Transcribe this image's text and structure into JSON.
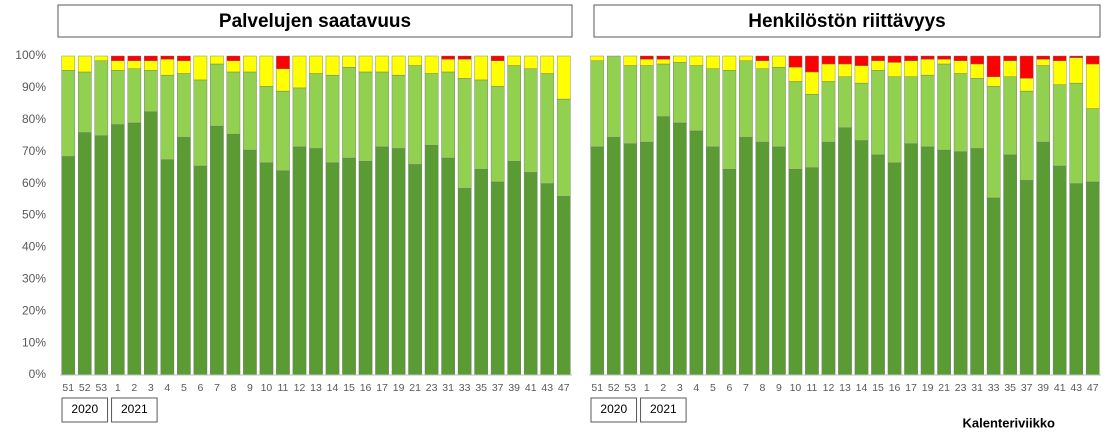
{
  "chart_data": [
    {
      "type": "stacked_bar",
      "title": "Palvelujen saatavuus",
      "categories": [
        "51",
        "52",
        "53",
        "1",
        "2",
        "3",
        "4",
        "5",
        "6",
        "7",
        "8",
        "9",
        "10",
        "11",
        "12",
        "13",
        "14",
        "15",
        "16",
        "17",
        "19",
        "21",
        "23",
        "31",
        "33",
        "35",
        "37",
        "39",
        "41",
        "43",
        "47"
      ],
      "series": [
        {
          "color": "#5b9b34",
          "values": [
            68.5,
            76,
            75,
            78.5,
            79,
            82.5,
            67.5,
            74.5,
            65.5,
            78,
            75.5,
            70.5,
            66.5,
            64,
            71.5,
            71,
            66.5,
            68,
            67,
            71.5,
            71,
            66,
            72,
            68,
            58.5,
            64.5,
            60.5,
            67,
            63.5,
            60,
            56
          ]
        },
        {
          "color": "#92d050",
          "values": [
            27,
            19,
            23.5,
            17,
            17,
            13,
            26.5,
            20,
            27,
            19.5,
            19.5,
            24.5,
            24,
            25,
            18.5,
            23.5,
            27.5,
            28.5,
            28,
            23.5,
            23,
            31,
            22.5,
            27,
            34.5,
            28,
            30,
            30,
            32.5,
            34.5,
            30.5
          ]
        },
        {
          "color": "#ffff00",
          "values": [
            4.5,
            5,
            1.5,
            3,
            2.5,
            3,
            5,
            4,
            7.5,
            2.5,
            3.5,
            5,
            9.5,
            7,
            10,
            5.5,
            6,
            3.5,
            5,
            5,
            6,
            3,
            5.5,
            4,
            6,
            7.5,
            8,
            3,
            4,
            5.5,
            13.5
          ]
        },
        {
          "color": "#ff0000",
          "values": [
            0,
            0,
            0,
            1.5,
            1.5,
            1.5,
            1,
            1.5,
            0,
            0,
            1.5,
            0,
            0,
            4,
            0,
            0,
            0,
            0,
            0,
            0,
            0,
            0,
            0,
            1,
            1,
            0,
            1.5,
            0,
            0,
            0,
            0
          ]
        }
      ],
      "ylim": [
        0,
        100
      ],
      "yticks": [
        {
          "value": 0,
          "label": "0%"
        },
        {
          "value": 10,
          "label": "10%"
        },
        {
          "value": 20,
          "label": "20%"
        },
        {
          "value": 30,
          "label": "30%"
        },
        {
          "value": 40,
          "label": "40%"
        },
        {
          "value": 50,
          "label": "50%"
        },
        {
          "value": 60,
          "label": "60%"
        },
        {
          "value": 70,
          "label": "70%"
        },
        {
          "value": 80,
          "label": "80%"
        },
        {
          "value": 90,
          "label": "90%"
        },
        {
          "value": 100,
          "label": "100%"
        }
      ],
      "year_labels": [
        "2020",
        "2021"
      ]
    },
    {
      "type": "stacked_bar",
      "title": "Henkilöstön riittävyys",
      "categories": [
        "51",
        "52",
        "53",
        "1",
        "2",
        "3",
        "4",
        "5",
        "6",
        "7",
        "8",
        "9",
        "10",
        "11",
        "12",
        "13",
        "14",
        "15",
        "16",
        "17",
        "19",
        "21",
        "23",
        "31",
        "33",
        "35",
        "37",
        "39",
        "41",
        "43",
        "47"
      ],
      "series": [
        {
          "color": "#5b9b34",
          "values": [
            71.5,
            74.5,
            72.5,
            73,
            81,
            79,
            76.5,
            71.5,
            64.5,
            74.5,
            73,
            71.5,
            64.5,
            65,
            73,
            77.5,
            73.5,
            69,
            66.5,
            72.5,
            71.5,
            70.5,
            70,
            71,
            55.5,
            69,
            61,
            73,
            65.5,
            60,
            60.5
          ]
        },
        {
          "color": "#92d050",
          "values": [
            27,
            25.5,
            24.5,
            24,
            16.5,
            19,
            20.5,
            24.5,
            31,
            24,
            23,
            25,
            27.5,
            23,
            19,
            16,
            18,
            26.5,
            27,
            21,
            22.5,
            27,
            24.5,
            22,
            35,
            24.5,
            28,
            24,
            25.5,
            31.5,
            23
          ]
        },
        {
          "color": "#ffff00",
          "values": [
            1.5,
            0,
            3,
            2,
            1.5,
            2,
            3,
            4,
            4.5,
            1.5,
            2.5,
            3.5,
            4.5,
            7,
            5.5,
            4,
            5.5,
            3,
            4.5,
            5,
            5,
            1.5,
            4,
            4.5,
            3,
            5,
            4,
            2,
            7.5,
            8,
            14
          ]
        },
        {
          "color": "#ff0000",
          "values": [
            0,
            0,
            0,
            1,
            1,
            0,
            0,
            0,
            0,
            0,
            1.5,
            0,
            3.5,
            5,
            2.5,
            2.5,
            3,
            1.5,
            2,
            1.5,
            1,
            1,
            1.5,
            2.5,
            6.5,
            1.5,
            7,
            1,
            1.5,
            0.5,
            2.5
          ]
        }
      ],
      "ylim": [
        0,
        100
      ],
      "year_labels": [
        "2020",
        "2021"
      ],
      "x_label": "Kalenteriviikko"
    }
  ]
}
